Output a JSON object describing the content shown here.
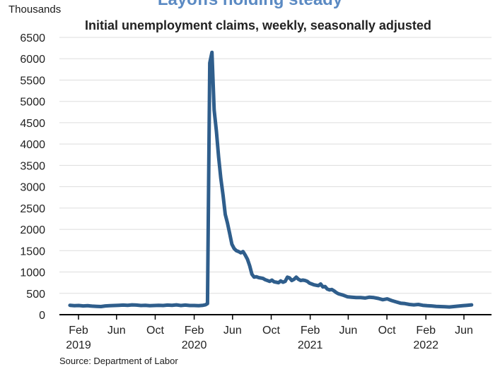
{
  "colors": {
    "headline": "#5b8ac3",
    "line": "#2f5e8c",
    "grid": "#dddddd",
    "axis": "#000000"
  },
  "headline": "Layoffs holding steady",
  "source": "Source: Department of Labor",
  "chart_data": {
    "type": "line",
    "title": "Initial unemployment claims, weekly, seasonally adjusted",
    "unit_label": "Thousands",
    "ylim": [
      0,
      6500
    ],
    "yticks": [
      "0",
      "500",
      "1000",
      "1500",
      "2000",
      "2500",
      "3000",
      "3500",
      "4000",
      "4500",
      "5000",
      "5500",
      "6000",
      "6500"
    ],
    "xlim": [
      "2019-01-15",
      "2022-07-20"
    ],
    "xticks": [
      {
        "date": "2019-02-01",
        "label": "Feb",
        "year": "2019"
      },
      {
        "date": "2019-06-01",
        "label": "Jun",
        "year": ""
      },
      {
        "date": "2019-10-01",
        "label": "Oct",
        "year": ""
      },
      {
        "date": "2020-02-01",
        "label": "Feb",
        "year": "2020"
      },
      {
        "date": "2020-06-01",
        "label": "Jun",
        "year": ""
      },
      {
        "date": "2020-10-01",
        "label": "Oct",
        "year": ""
      },
      {
        "date": "2021-02-01",
        "label": "Feb",
        "year": "2021"
      },
      {
        "date": "2021-06-01",
        "label": "Jun",
        "year": ""
      },
      {
        "date": "2021-10-01",
        "label": "Oct",
        "year": ""
      },
      {
        "date": "2022-02-01",
        "label": "Feb",
        "year": "2022"
      },
      {
        "date": "2022-06-01",
        "label": "Jun",
        "year": ""
      }
    ],
    "grid": true,
    "series": [
      {
        "x": [
          "2019-01-05",
          "2019-01-19",
          "2019-02-02",
          "2019-02-16",
          "2019-03-02",
          "2019-03-16",
          "2019-03-30",
          "2019-04-13",
          "2019-04-27",
          "2019-05-11",
          "2019-05-25",
          "2019-06-08",
          "2019-06-22",
          "2019-07-06",
          "2019-07-20",
          "2019-08-03",
          "2019-08-17",
          "2019-08-31",
          "2019-09-14",
          "2019-09-28",
          "2019-10-12",
          "2019-10-26",
          "2019-11-09",
          "2019-11-23",
          "2019-12-07",
          "2019-12-21",
          "2020-01-04",
          "2020-01-18",
          "2020-02-01",
          "2020-02-15",
          "2020-02-29",
          "2020-03-07",
          "2020-03-14",
          "2020-03-21",
          "2020-03-28",
          "2020-04-04",
          "2020-04-11",
          "2020-04-18",
          "2020-04-25",
          "2020-05-02",
          "2020-05-09",
          "2020-05-16",
          "2020-05-23",
          "2020-05-30",
          "2020-06-06",
          "2020-06-13",
          "2020-06-20",
          "2020-06-27",
          "2020-07-04",
          "2020-07-11",
          "2020-07-18",
          "2020-07-25",
          "2020-08-01",
          "2020-08-08",
          "2020-08-15",
          "2020-08-22",
          "2020-08-29",
          "2020-09-05",
          "2020-09-12",
          "2020-09-19",
          "2020-09-26",
          "2020-10-03",
          "2020-10-10",
          "2020-10-17",
          "2020-10-24",
          "2020-10-31",
          "2020-11-07",
          "2020-11-14",
          "2020-11-21",
          "2020-11-28",
          "2020-12-05",
          "2020-12-12",
          "2020-12-19",
          "2020-12-26",
          "2021-01-02",
          "2021-01-09",
          "2021-01-16",
          "2021-01-23",
          "2021-01-30",
          "2021-02-06",
          "2021-02-13",
          "2021-02-20",
          "2021-02-27",
          "2021-03-06",
          "2021-03-13",
          "2021-03-20",
          "2021-03-27",
          "2021-04-03",
          "2021-04-10",
          "2021-04-17",
          "2021-04-24",
          "2021-05-01",
          "2021-05-15",
          "2021-05-29",
          "2021-06-12",
          "2021-06-26",
          "2021-07-10",
          "2021-07-24",
          "2021-08-07",
          "2021-08-21",
          "2021-09-04",
          "2021-09-18",
          "2021-10-02",
          "2021-10-16",
          "2021-10-30",
          "2021-11-13",
          "2021-11-27",
          "2021-12-11",
          "2021-12-25",
          "2022-01-08",
          "2022-01-22",
          "2022-02-05",
          "2022-02-19",
          "2022-03-05",
          "2022-03-19",
          "2022-04-02",
          "2022-04-16",
          "2022-04-30",
          "2022-05-14",
          "2022-05-28",
          "2022-06-11",
          "2022-06-25"
        ],
        "values": [
          220,
          210,
          215,
          205,
          210,
          200,
          195,
          190,
          205,
          210,
          215,
          220,
          225,
          220,
          230,
          225,
          215,
          220,
          210,
          215,
          220,
          215,
          225,
          220,
          230,
          215,
          225,
          215,
          215,
          210,
          220,
          230,
          260,
          5900,
          6150,
          4800,
          4300,
          3700,
          3200,
          2800,
          2350,
          2150,
          1900,
          1650,
          1550,
          1500,
          1480,
          1450,
          1480,
          1400,
          1300,
          1150,
          950,
          880,
          890,
          870,
          860,
          850,
          820,
          800,
          780,
          810,
          770,
          760,
          750,
          790,
          760,
          780,
          880,
          860,
          800,
          830,
          880,
          830,
          800,
          810,
          800,
          780,
          740,
          720,
          700,
          690,
          680,
          720,
          650,
          660,
          600,
          580,
          590,
          560,
          520,
          490,
          460,
          420,
          410,
          400,
          400,
          390,
          410,
          400,
          380,
          350,
          370,
          330,
          300,
          270,
          260,
          240,
          230,
          240,
          220,
          210,
          205,
          195,
          190,
          185,
          180,
          190,
          200,
          210,
          220,
          230
        ]
      }
    ]
  }
}
